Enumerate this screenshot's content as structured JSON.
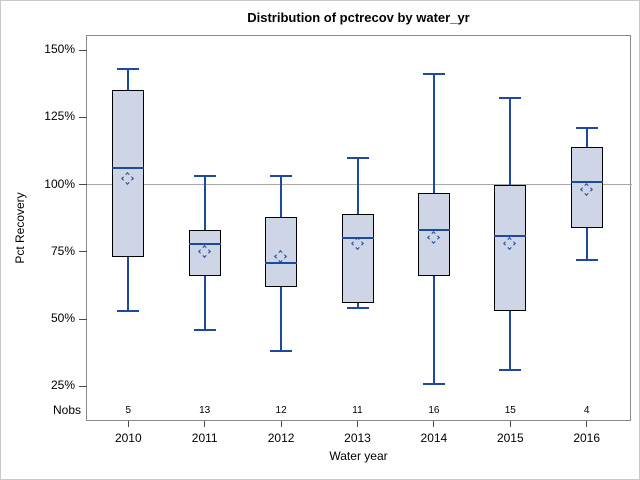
{
  "figure": {
    "title": "Distribution of pctrecov by water_yr",
    "xlabel": "Water year",
    "ylabel": "Pct Recovery",
    "nobs_label": "Nobs"
  },
  "chart_data": {
    "type": "boxplot",
    "title": "Distribution of pctrecov by water_yr",
    "xlabel": "Water year",
    "ylabel": "Pct Recovery",
    "categories": [
      "2010",
      "2011",
      "2012",
      "2013",
      "2014",
      "2015",
      "2016"
    ],
    "nobs_label": "Nobs",
    "nobs": [
      5,
      13,
      12,
      11,
      16,
      15,
      4
    ],
    "series": {
      "whisker_low": [
        53,
        46,
        38,
        54,
        26,
        31,
        72
      ],
      "q1": [
        73,
        66,
        62,
        56,
        66,
        53,
        84
      ],
      "median": [
        106,
        78,
        71,
        80,
        83,
        81,
        101
      ],
      "q3": [
        135,
        83,
        88,
        89,
        97,
        100,
        114
      ],
      "whisker_high": [
        143,
        103,
        103,
        110,
        141,
        132,
        121
      ],
      "mean": [
        102,
        75,
        73,
        78,
        80,
        78,
        98
      ]
    },
    "yticks": [
      150,
      125,
      100,
      75,
      50,
      25
    ],
    "ytick_labels": [
      "150%",
      "125%",
      "100%",
      "75%",
      "50%",
      "25%"
    ],
    "ylim": [
      11,
      155
    ],
    "reference_line": 100,
    "grid": false,
    "legend": false,
    "unit": "percent"
  },
  "colors": {
    "box_fill": "#cdd5e6",
    "box_border": "#000000",
    "line_blue": "#1c4a9c",
    "reference_gray": "#a8a8a8",
    "frame_gray": "#8a8a8a",
    "tick_color": "#4a4a4a",
    "text": "#000000",
    "figure_border": "#c9c9c9",
    "background": "#ffffff"
  }
}
